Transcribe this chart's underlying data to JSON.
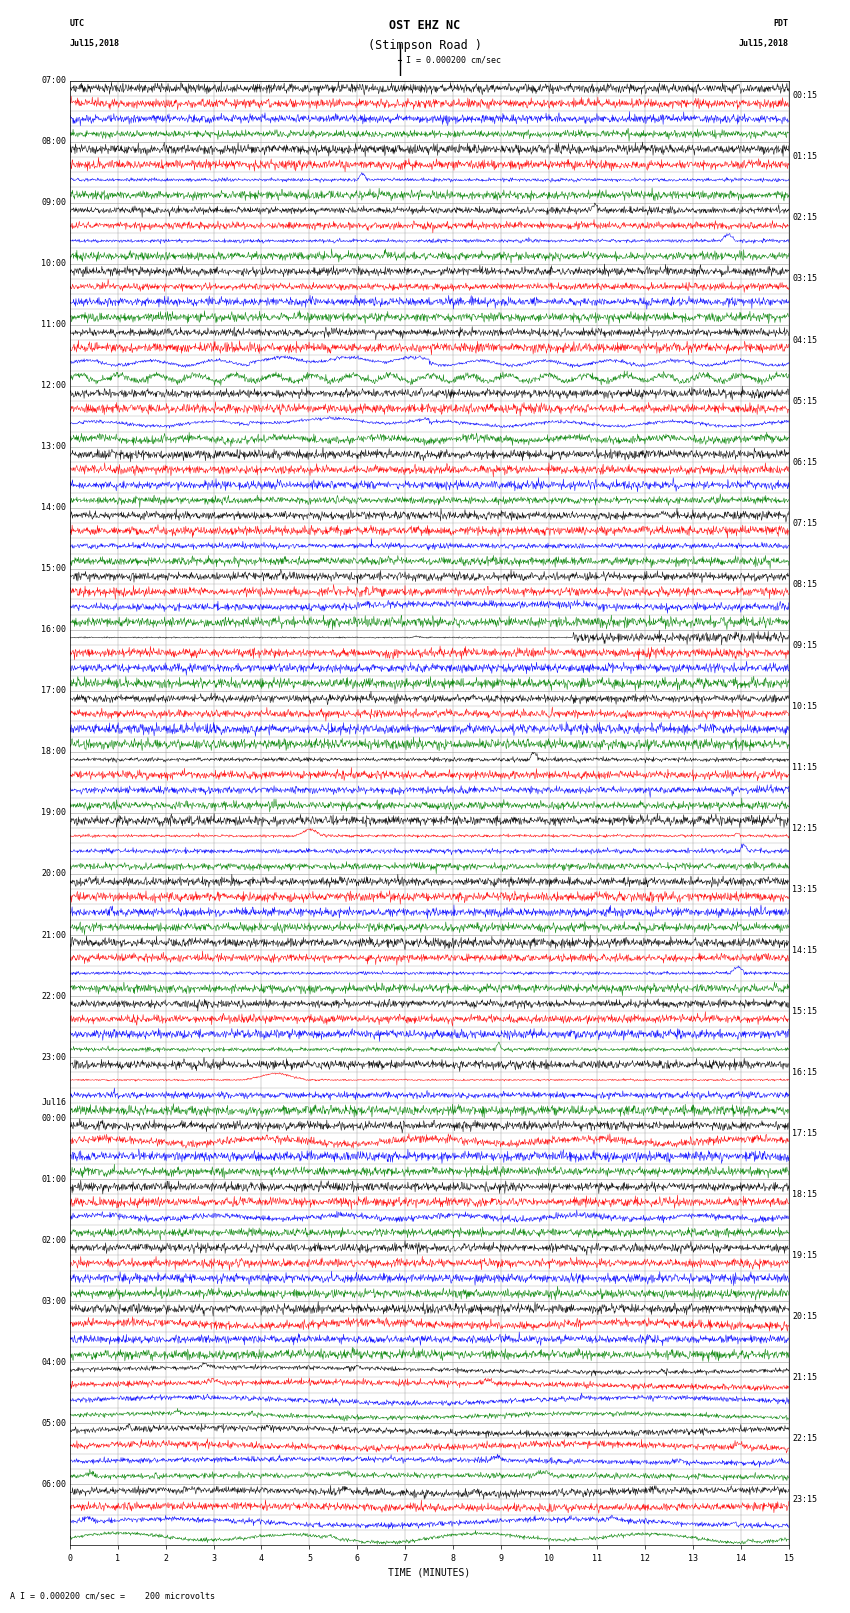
{
  "title_line1": "OST EHZ NC",
  "title_line2": "(Stimpson Road )",
  "scale_text": "I = 0.000200 cm/sec",
  "utc_label": "UTC",
  "utc_date": "Jul15,2018",
  "pdt_label": "PDT",
  "pdt_date": "Jul15,2018",
  "bottom_label": "TIME (MINUTES)",
  "bottom_scale": "A I = 0.000200 cm/sec =    200 microvolts",
  "left_labels": [
    [
      "07:00",
      0
    ],
    [
      "08:00",
      4
    ],
    [
      "09:00",
      8
    ],
    [
      "10:00",
      12
    ],
    [
      "11:00",
      16
    ],
    [
      "12:00",
      20
    ],
    [
      "13:00",
      24
    ],
    [
      "14:00",
      28
    ],
    [
      "15:00",
      32
    ],
    [
      "16:00",
      36
    ],
    [
      "17:00",
      40
    ],
    [
      "18:00",
      44
    ],
    [
      "19:00",
      48
    ],
    [
      "20:00",
      52
    ],
    [
      "21:00",
      56
    ],
    [
      "22:00",
      60
    ],
    [
      "23:00",
      64
    ],
    [
      "Jul16",
      67
    ],
    [
      "00:00",
      68
    ],
    [
      "01:00",
      72
    ],
    [
      "02:00",
      76
    ],
    [
      "03:00",
      80
    ],
    [
      "04:00",
      84
    ],
    [
      "05:00",
      88
    ],
    [
      "06:00",
      92
    ]
  ],
  "right_labels": [
    [
      "00:15",
      1
    ],
    [
      "01:15",
      5
    ],
    [
      "02:15",
      9
    ],
    [
      "03:15",
      13
    ],
    [
      "04:15",
      17
    ],
    [
      "05:15",
      21
    ],
    [
      "06:15",
      25
    ],
    [
      "07:15",
      29
    ],
    [
      "08:15",
      33
    ],
    [
      "09:15",
      37
    ],
    [
      "10:15",
      41
    ],
    [
      "11:15",
      45
    ],
    [
      "12:15",
      49
    ],
    [
      "13:15",
      53
    ],
    [
      "14:15",
      57
    ],
    [
      "15:15",
      61
    ],
    [
      "16:15",
      65
    ],
    [
      "17:15",
      69
    ],
    [
      "18:15",
      73
    ],
    [
      "19:15",
      77
    ],
    [
      "20:15",
      81
    ],
    [
      "21:15",
      85
    ],
    [
      "22:15",
      89
    ],
    [
      "23:15",
      93
    ]
  ],
  "n_rows": 96,
  "n_cols": 15,
  "bg_color": "#ffffff",
  "grid_color": "#999999",
  "colors": [
    "black",
    "red",
    "blue",
    "green"
  ],
  "title_fontsize": 8.5,
  "label_fontsize": 7,
  "tick_fontsize": 6
}
